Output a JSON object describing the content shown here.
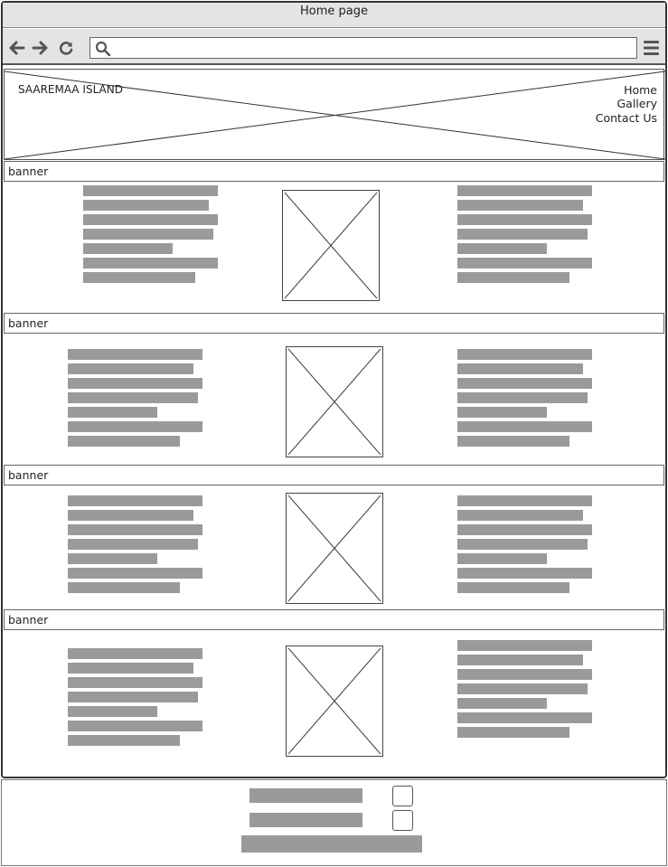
{
  "window": {
    "title": "Home page"
  },
  "toolbar": {
    "back_icon": "arrow-left-icon",
    "forward_icon": "arrow-right-icon",
    "reload_icon": "reload-icon",
    "search_icon": "search-icon",
    "menu_icon": "hamburger-menu-icon",
    "url_value": ""
  },
  "header": {
    "brand": "SAAREMAA ISLAND",
    "nav": [
      "Home",
      "Gallery",
      "Contact Us"
    ]
  },
  "sections": [
    {
      "banner": "banner"
    },
    {
      "banner": "banner"
    },
    {
      "banner": "banner"
    },
    {
      "banner": "banner"
    }
  ],
  "colors": {
    "placeholder_bar": "#9a9a9a",
    "chrome": "#e4e4e4",
    "border": "#333333"
  }
}
